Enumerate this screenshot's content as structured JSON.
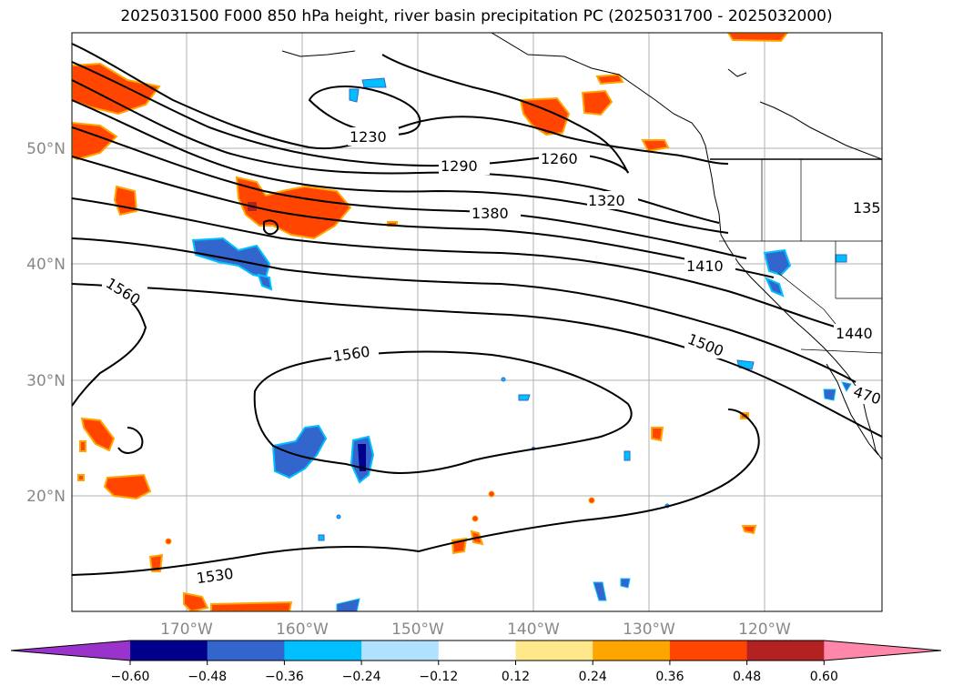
{
  "title": "2025031500 F000 850 hPa height, river basin precipitation PC (2025031700 - 2025032000)",
  "lat_labels": [
    "50°N",
    "40°N",
    "30°N",
    "20°N"
  ],
  "lon_labels": [
    "170°W",
    "160°W",
    "150°W",
    "140°W",
    "130°W",
    "120°W"
  ],
  "contour_labels": [
    "1230",
    "1260",
    "1290",
    "1320",
    "1380",
    "1410",
    "1560",
    "1560",
    "1500",
    "1440",
    "1530",
    "135",
    "470"
  ],
  "colorbar": {
    "colors": [
      "#9933cc",
      "#00008b",
      "#3366cc",
      "#00bfff",
      "#b0e2ff",
      "#ffffff",
      "#ffe88c",
      "#ffa500",
      "#ff4500",
      "#b22222",
      "#ff88aa"
    ],
    "ticks": [
      "−0.60",
      "−0.48",
      "−0.36",
      "−0.24",
      "−0.12",
      "0.12",
      "0.24",
      "0.36",
      "0.48",
      "0.60"
    ]
  }
}
